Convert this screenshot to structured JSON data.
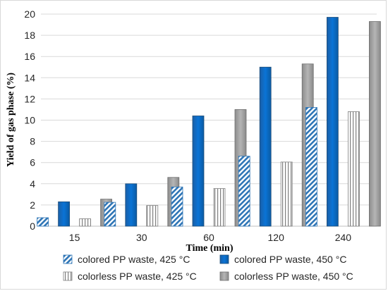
{
  "chart_data": {
    "type": "bar",
    "xlabel": "Time (min)",
    "ylabel": "Yield of gas phase (%)",
    "ylim": [
      0,
      20
    ],
    "yticks": [
      "0",
      "2",
      "4",
      "6",
      "8",
      "10",
      "12",
      "14",
      "16",
      "18",
      "20"
    ],
    "categories": [
      "15",
      "30",
      "60",
      "120",
      "240"
    ],
    "grid": true,
    "legend_position": "bottom",
    "series": [
      {
        "name": "colored PP waste, 425 °C",
        "values": [
          0.8,
          2.25,
          3.7,
          6.6,
          11.2
        ],
        "pattern": "diagonal-stripes",
        "color": "#2e75b6"
      },
      {
        "name": "colored PP waste, 450 °C",
        "values": [
          2.3,
          4.0,
          10.4,
          15.0,
          19.7
        ],
        "pattern": "solid",
        "color": "#0070c0"
      },
      {
        "name": "colorless PP waste, 425 °C",
        "values": [
          0.7,
          1.95,
          3.55,
          6.05,
          10.8
        ],
        "pattern": "vertical-stripes",
        "color": "#7f7f7f"
      },
      {
        "name": "colorless PP waste, 450 °C",
        "values": [
          2.55,
          4.6,
          11.0,
          15.3,
          19.3
        ],
        "pattern": "solid",
        "color": "#a6a6a6"
      }
    ]
  }
}
